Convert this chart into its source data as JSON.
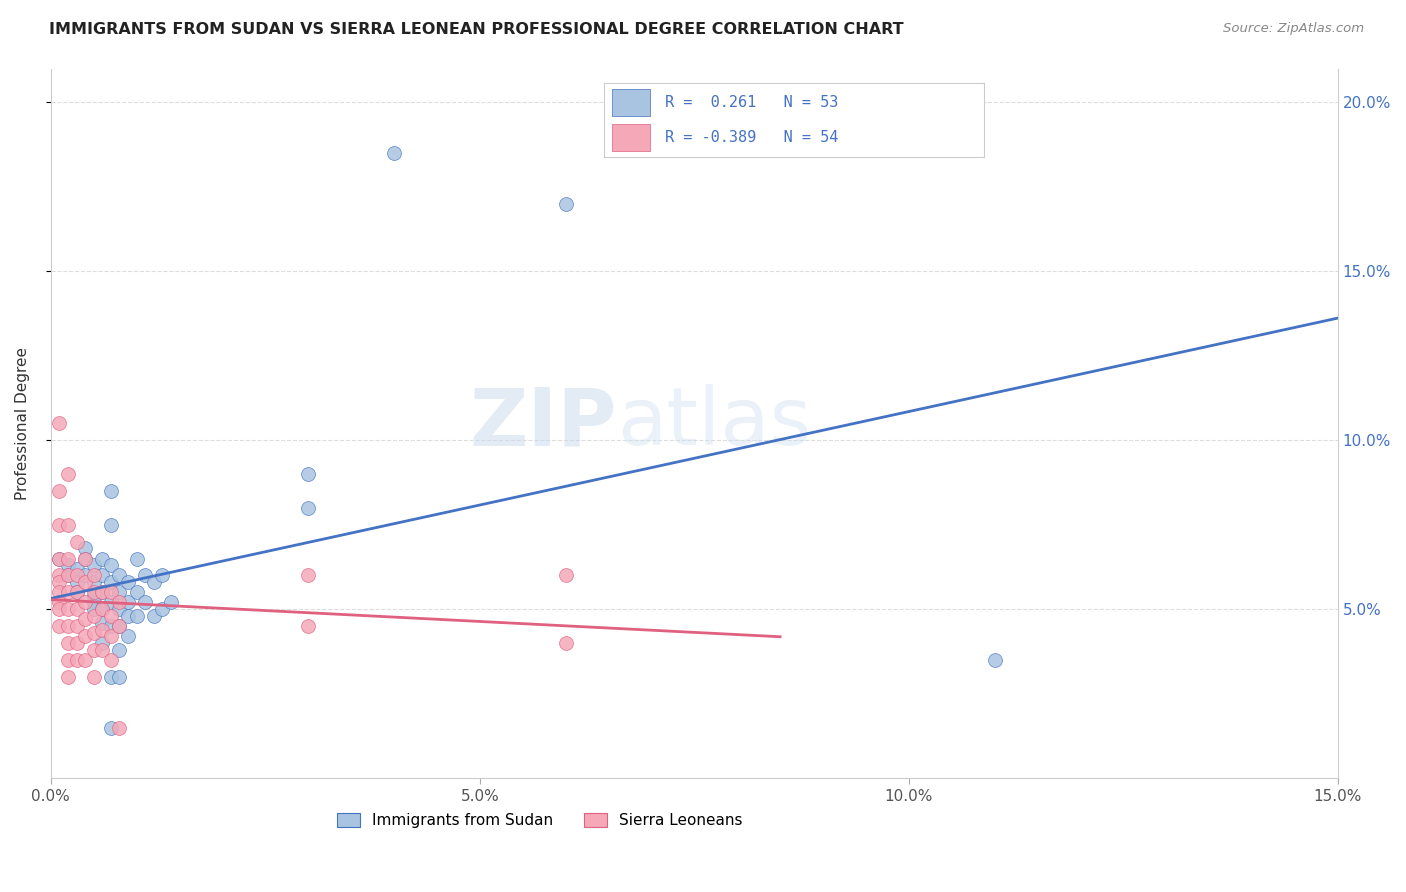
{
  "title": "IMMIGRANTS FROM SUDAN VS SIERRA LEONEAN PROFESSIONAL DEGREE CORRELATION CHART",
  "source": "Source: ZipAtlas.com",
  "ylabel": "Professional Degree",
  "xlim": [
    0.0,
    0.15
  ],
  "ylim": [
    0.0,
    0.21
  ],
  "blue_color": "#a8c4e0",
  "pink_color": "#f4a8b8",
  "line_blue": "#4472c4",
  "line_pink": "#e06080",
  "watermark_zip": "ZIP",
  "watermark_atlas": "atlas",
  "sudan_points": [
    [
      0.001,
      0.065
    ],
    [
      0.002,
      0.063
    ],
    [
      0.002,
      0.06
    ],
    [
      0.003,
      0.062
    ],
    [
      0.003,
      0.058
    ],
    [
      0.003,
      0.055
    ],
    [
      0.004,
      0.068
    ],
    [
      0.004,
      0.065
    ],
    [
      0.004,
      0.06
    ],
    [
      0.005,
      0.063
    ],
    [
      0.005,
      0.058
    ],
    [
      0.005,
      0.054
    ],
    [
      0.005,
      0.052
    ],
    [
      0.005,
      0.05
    ],
    [
      0.006,
      0.065
    ],
    [
      0.006,
      0.06
    ],
    [
      0.006,
      0.055
    ],
    [
      0.006,
      0.05
    ],
    [
      0.006,
      0.046
    ],
    [
      0.006,
      0.04
    ],
    [
      0.007,
      0.085
    ],
    [
      0.007,
      0.075
    ],
    [
      0.007,
      0.063
    ],
    [
      0.007,
      0.058
    ],
    [
      0.007,
      0.052
    ],
    [
      0.007,
      0.045
    ],
    [
      0.007,
      0.03
    ],
    [
      0.007,
      0.015
    ],
    [
      0.008,
      0.06
    ],
    [
      0.008,
      0.055
    ],
    [
      0.008,
      0.05
    ],
    [
      0.008,
      0.045
    ],
    [
      0.008,
      0.038
    ],
    [
      0.008,
      0.03
    ],
    [
      0.009,
      0.058
    ],
    [
      0.009,
      0.052
    ],
    [
      0.009,
      0.048
    ],
    [
      0.009,
      0.042
    ],
    [
      0.01,
      0.065
    ],
    [
      0.01,
      0.055
    ],
    [
      0.01,
      0.048
    ],
    [
      0.011,
      0.06
    ],
    [
      0.011,
      0.052
    ],
    [
      0.012,
      0.058
    ],
    [
      0.012,
      0.048
    ],
    [
      0.013,
      0.06
    ],
    [
      0.013,
      0.05
    ],
    [
      0.014,
      0.052
    ],
    [
      0.03,
      0.09
    ],
    [
      0.03,
      0.08
    ],
    [
      0.04,
      0.185
    ],
    [
      0.06,
      0.17
    ],
    [
      0.11,
      0.035
    ]
  ],
  "sl_points": [
    [
      0.001,
      0.105
    ],
    [
      0.001,
      0.085
    ],
    [
      0.001,
      0.075
    ],
    [
      0.001,
      0.065
    ],
    [
      0.001,
      0.06
    ],
    [
      0.001,
      0.058
    ],
    [
      0.001,
      0.055
    ],
    [
      0.001,
      0.052
    ],
    [
      0.001,
      0.05
    ],
    [
      0.001,
      0.045
    ],
    [
      0.002,
      0.09
    ],
    [
      0.002,
      0.075
    ],
    [
      0.002,
      0.065
    ],
    [
      0.002,
      0.06
    ],
    [
      0.002,
      0.055
    ],
    [
      0.002,
      0.05
    ],
    [
      0.002,
      0.045
    ],
    [
      0.002,
      0.04
    ],
    [
      0.002,
      0.035
    ],
    [
      0.002,
      0.03
    ],
    [
      0.003,
      0.07
    ],
    [
      0.003,
      0.06
    ],
    [
      0.003,
      0.055
    ],
    [
      0.003,
      0.05
    ],
    [
      0.003,
      0.045
    ],
    [
      0.003,
      0.04
    ],
    [
      0.003,
      0.035
    ],
    [
      0.004,
      0.065
    ],
    [
      0.004,
      0.058
    ],
    [
      0.004,
      0.052
    ],
    [
      0.004,
      0.047
    ],
    [
      0.004,
      0.042
    ],
    [
      0.004,
      0.035
    ],
    [
      0.005,
      0.06
    ],
    [
      0.005,
      0.055
    ],
    [
      0.005,
      0.048
    ],
    [
      0.005,
      0.043
    ],
    [
      0.005,
      0.038
    ],
    [
      0.005,
      0.03
    ],
    [
      0.006,
      0.055
    ],
    [
      0.006,
      0.05
    ],
    [
      0.006,
      0.044
    ],
    [
      0.006,
      0.038
    ],
    [
      0.007,
      0.055
    ],
    [
      0.007,
      0.048
    ],
    [
      0.007,
      0.042
    ],
    [
      0.007,
      0.035
    ],
    [
      0.008,
      0.052
    ],
    [
      0.008,
      0.045
    ],
    [
      0.008,
      0.015
    ],
    [
      0.03,
      0.06
    ],
    [
      0.03,
      0.045
    ],
    [
      0.06,
      0.06
    ],
    [
      0.06,
      0.04
    ]
  ]
}
